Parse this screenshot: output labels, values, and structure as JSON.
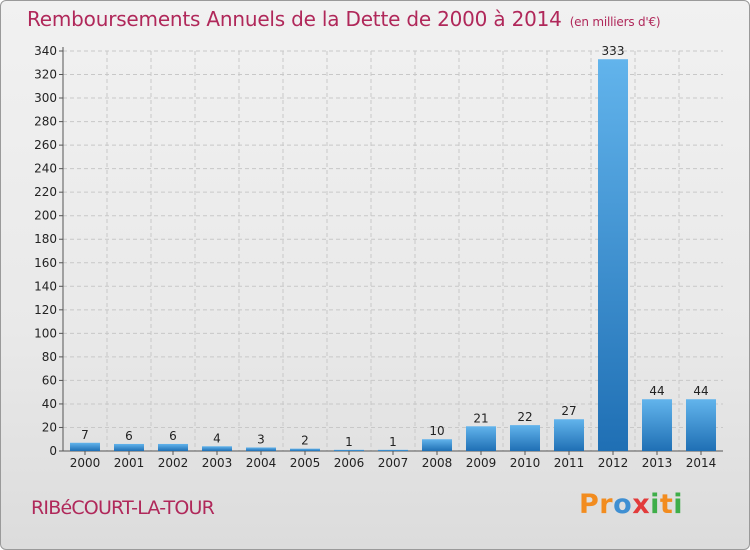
{
  "header": {
    "title": "Remboursements Annuels de la Dette de 2000 à 2014",
    "subtitle": "(en milliers d'€)"
  },
  "footer": {
    "town": "RIBéCOURT-LA-TOUR",
    "logo": [
      "P",
      "r",
      "o",
      "x",
      "i",
      "t",
      "i"
    ]
  },
  "colors": {
    "title": "#b0285a",
    "bar_light": "#62b4ec",
    "bar_dark": "#1f6fb4",
    "grid": "#c8c8c8",
    "logo": [
      "#f28c1f",
      "#f28c1f",
      "#3f8fd2",
      "#e23b3b",
      "#3fae49",
      "#f28c1f",
      "#3fae49"
    ]
  },
  "chart_data": {
    "type": "bar",
    "categories": [
      "2000",
      "2001",
      "2002",
      "2003",
      "2004",
      "2005",
      "2006",
      "2007",
      "2008",
      "2009",
      "2010",
      "2011",
      "2012",
      "2013",
      "2014"
    ],
    "values": [
      7,
      6,
      6,
      4,
      3,
      2,
      1,
      1,
      10,
      21,
      22,
      27,
      333,
      44,
      44
    ],
    "data_labels": [
      "7",
      "6",
      "6",
      "4",
      "3",
      "2",
      "1",
      "1",
      "10",
      "21",
      "22",
      "27",
      "333",
      "44",
      "44"
    ],
    "y_ticks": [
      "0",
      "20",
      "40",
      "60",
      "80",
      "100",
      "120",
      "140",
      "160",
      "180",
      "200",
      "220",
      "240",
      "260",
      "280",
      "300",
      "320",
      "340"
    ],
    "ylim": [
      0,
      340
    ],
    "grid": true,
    "legend": "none"
  }
}
